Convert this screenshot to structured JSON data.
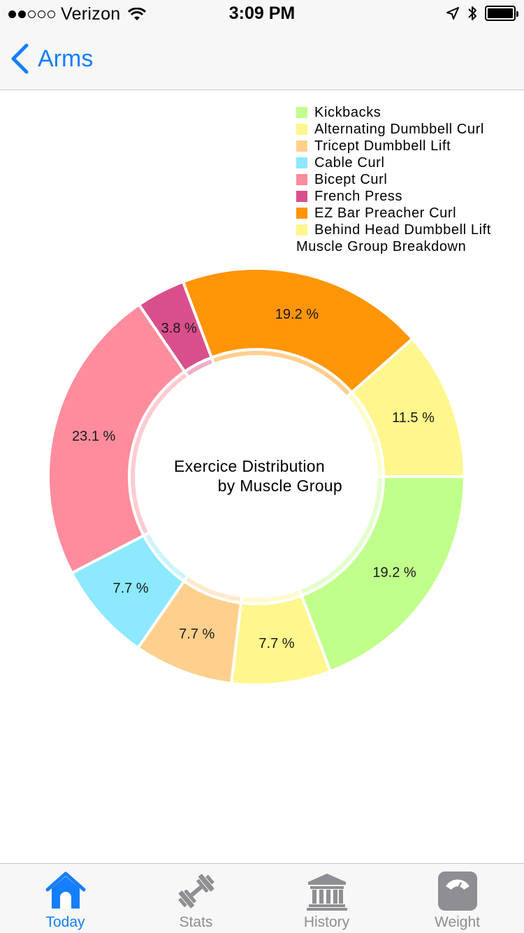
{
  "status_bar": {
    "carrier": "Verizon",
    "time": "3:09 PM",
    "signal_strength": 2,
    "signal_total": 5
  },
  "nav": {
    "back_label": "Arms"
  },
  "chart_data": {
    "type": "pie",
    "variant": "donut",
    "center_title_line1": "Exercice Distribution",
    "center_title_line2": "by Muscle Group",
    "legend_title": "Muscle Group Breakdown",
    "legend_position": "top-right",
    "slices": [
      {
        "name": "Kickbacks",
        "value": 19.2,
        "label": "19.2 %",
        "color": "#c1ff8c"
      },
      {
        "name": "Alternating Dumbbell Curl",
        "value": 7.7,
        "label": "7.7 %",
        "color": "#fff68e"
      },
      {
        "name": "Tricept Dumbbell Lift",
        "value": 7.7,
        "label": "7.7 %",
        "color": "#ffd08d"
      },
      {
        "name": "Cable Curl",
        "value": 7.7,
        "label": "7.7 %",
        "color": "#8ce9ff"
      },
      {
        "name": "Bicept Curl",
        "value": 23.1,
        "label": "23.1 %",
        "color": "#ff8c9c"
      },
      {
        "name": "French Press",
        "value": 3.8,
        "label": "3.8 %",
        "color": "#d94f8b"
      },
      {
        "name": "EZ Bar Preacher Curl",
        "value": 19.2,
        "label": "19.2 %",
        "color": "#ff9507"
      },
      {
        "name": "Behind Head Dumbbell Lift",
        "value": 11.5,
        "label": "11.5 %",
        "color": "#fff68e"
      }
    ]
  },
  "tabs": [
    {
      "label": "Today",
      "icon": "house-icon",
      "active": true
    },
    {
      "label": "Stats",
      "icon": "dumbbell-icon",
      "active": false
    },
    {
      "label": "History",
      "icon": "museum-icon",
      "active": false
    },
    {
      "label": "Weight",
      "icon": "scale-icon",
      "active": false
    }
  ],
  "colors": {
    "accent": "#157efb",
    "tab_inactive": "#8e8e93",
    "bar_background": "#f7f7f7"
  }
}
